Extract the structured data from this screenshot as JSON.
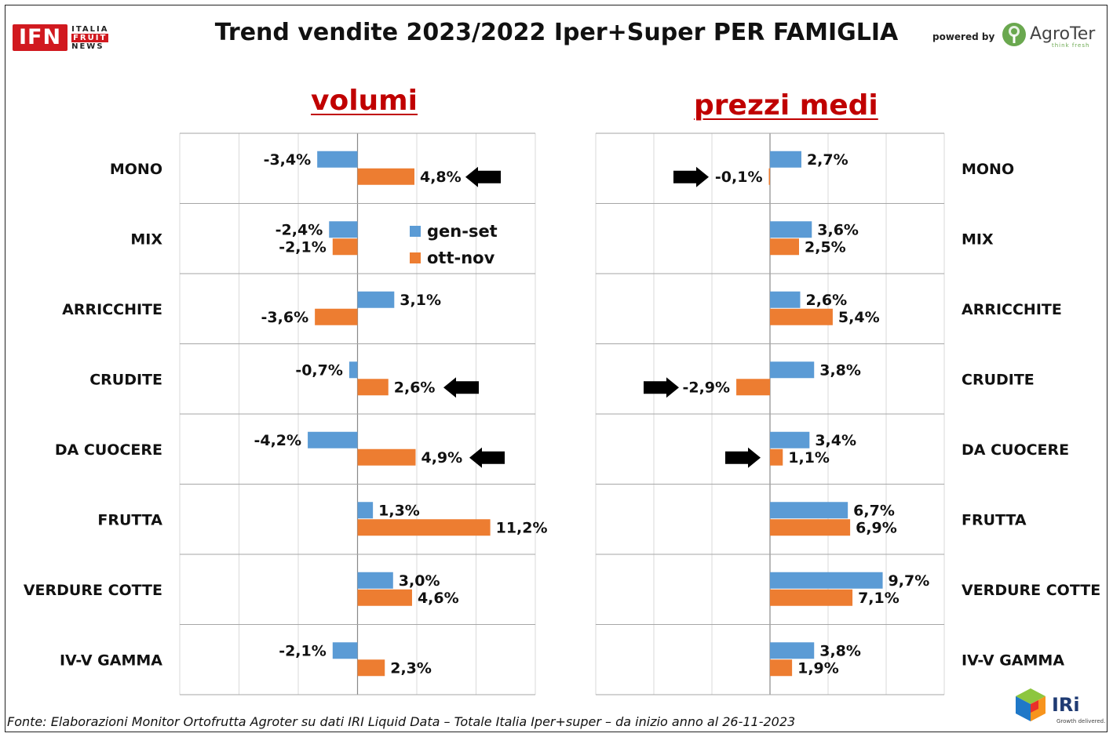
{
  "header": {
    "title": "Trend vendite 2023/2022 Iper+Super PER FAMIGLIA",
    "powered_by": "powered by",
    "ifn_logo": {
      "main": "IFN",
      "line1": "ITALIA",
      "line2": "FRUIT",
      "line3": "NEWS"
    },
    "agroter_logo": {
      "name": "AgroTer",
      "tagline": "think fresh"
    }
  },
  "footer": {
    "source": "Fonte: Elaborazioni Monitor Ortofrutta Agroter su dati IRI Liquid Data – Totale Italia Iper+super –  da inizio anno al 26-11-2023",
    "iri_logo": {
      "name": "IRi",
      "tagline": "Growth delivered."
    }
  },
  "legend": [
    {
      "name": "gen-set",
      "color": "#5b9bd5"
    },
    {
      "name": "ott-nov",
      "color": "#ed7d31"
    }
  ],
  "chart_data": [
    {
      "type": "bar",
      "orientation": "horizontal",
      "title": "volumi",
      "categories": [
        "MONO",
        "MIX",
        "ARRICCHITE",
        "CRUDITE",
        "DA CUOCERE",
        "FRUTTA",
        "VERDURE COTTE",
        "IV-V GAMMA"
      ],
      "series": [
        {
          "name": "gen-set",
          "color": "#5b9bd5",
          "values": [
            -3.4,
            -2.4,
            3.1,
            -0.7,
            -4.2,
            1.3,
            3.0,
            -2.1
          ],
          "labels": [
            "-3,4%",
            "-2,4%",
            "3,1%",
            "-0,7%",
            "-4,2%",
            "1,3%",
            "3,0%",
            "-2,1%"
          ]
        },
        {
          "name": "ott-nov",
          "color": "#ed7d31",
          "values": [
            4.8,
            -2.1,
            -3.6,
            2.6,
            4.9,
            11.2,
            4.6,
            2.3
          ],
          "labels": [
            "4,8%",
            "-2,1%",
            "-3,6%",
            "2,6%",
            "4,9%",
            "11,2%",
            "4,6%",
            "2,3%"
          ]
        }
      ],
      "xlim": [
        -15,
        15
      ],
      "grid": true,
      "category_labels_side": "left",
      "arrows": [
        {
          "category": "MONO",
          "direction": "left"
        },
        {
          "category": "CRUDITE",
          "direction": "left"
        },
        {
          "category": "DA CUOCERE",
          "direction": "left"
        }
      ]
    },
    {
      "type": "bar",
      "orientation": "horizontal",
      "title": "prezzi medi",
      "categories": [
        "MONO",
        "MIX",
        "ARRICCHITE",
        "CRUDITE",
        "DA CUOCERE",
        "FRUTTA",
        "VERDURE COTTE",
        "IV-V GAMMA"
      ],
      "series": [
        {
          "name": "gen-set",
          "color": "#5b9bd5",
          "values": [
            2.7,
            3.6,
            2.6,
            3.8,
            3.4,
            6.7,
            9.7,
            3.8
          ],
          "labels": [
            "2,7%",
            "3,6%",
            "2,6%",
            "3,8%",
            "3,4%",
            "6,7%",
            "9,7%",
            "3,8%"
          ]
        },
        {
          "name": "ott-nov",
          "color": "#ed7d31",
          "values": [
            -0.1,
            2.5,
            5.4,
            -2.9,
            1.1,
            6.9,
            7.1,
            1.9
          ],
          "labels": [
            "-0,1%",
            "2,5%",
            "5,4%",
            "-2,9%",
            "1,1%",
            "6,9%",
            "7,1%",
            "1,9%"
          ]
        }
      ],
      "xlim": [
        -15,
        15
      ],
      "grid": true,
      "category_labels_side": "right",
      "arrows": [
        {
          "category": "MONO",
          "direction": "right"
        },
        {
          "category": "CRUDITE",
          "direction": "right"
        },
        {
          "category": "DA CUOCERE",
          "direction": "right"
        }
      ]
    }
  ]
}
